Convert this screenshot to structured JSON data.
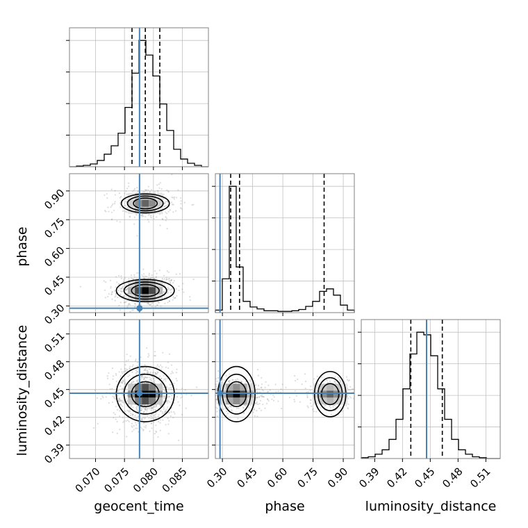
{
  "chart_data": {
    "type": "corner",
    "parameters": [
      "geocent_time",
      "phase",
      "luminosity_distance"
    ],
    "truths": {
      "geocent_time": 0.0776,
      "phase": 0.288,
      "luminosity_distance": 0.446
    },
    "colors": {
      "truth": "#4682b4",
      "line": "#000000",
      "grid": "#c0c0c0",
      "frame": "#808080",
      "scatter": "#9a9a9a"
    },
    "grid": true,
    "panels": [
      {
        "kind": "hist1d",
        "param": "geocent_time",
        "xlim": [
          0.0655,
          0.0895
        ],
        "xticks": [
          "0.070",
          "0.075",
          "0.080",
          "0.085"
        ],
        "quantiles": [
          0.0763,
          0.0786,
          0.0811
        ],
        "bin_edges": [
          0.0655,
          0.0667,
          0.0679,
          0.0691,
          0.0703,
          0.0715,
          0.0727,
          0.0739,
          0.0751,
          0.0763,
          0.0775,
          0.0787,
          0.0799,
          0.0811,
          0.0823,
          0.0835,
          0.0847,
          0.0859,
          0.0871,
          0.0883,
          0.0895
        ],
        "counts": [
          0,
          1,
          2,
          4,
          9,
          18,
          30,
          48,
          85,
          134,
          181,
          160,
          130,
          90,
          52,
          25,
          11,
          5,
          2,
          0
        ]
      },
      {
        "kind": "hist2d",
        "x": "geocent_time",
        "y": "phase",
        "xlim": [
          0.0655,
          0.0895
        ],
        "ylim": [
          0.265,
          0.99
        ],
        "yticks": [
          "0.30",
          "0.45",
          "0.60",
          "0.75",
          "0.90"
        ],
        "modes": [
          {
            "x": 0.0786,
            "y": 0.38,
            "weight": 0.62
          },
          {
            "x": 0.0786,
            "y": 0.835,
            "weight": 0.38
          }
        ]
      },
      {
        "kind": "hist1d",
        "param": "phase",
        "xlim": [
          0.265,
          0.955
        ],
        "xticks": [
          "0.30",
          "0.45",
          "0.60",
          "0.75",
          "0.90"
        ],
        "quantiles": [
          0.341,
          0.385,
          0.805
        ],
        "bin_edges": [
          0.265,
          0.2995,
          0.334,
          0.3685,
          0.403,
          0.4375,
          0.472,
          0.5065,
          0.541,
          0.5755,
          0.61,
          0.6445,
          0.679,
          0.7135,
          0.748,
          0.7825,
          0.817,
          0.8515,
          0.886,
          0.9205,
          0.955
        ],
        "counts": [
          4,
          54,
          202,
          73,
          18,
          9,
          6,
          3,
          3,
          2,
          2,
          3,
          5,
          10,
          18,
          34,
          38,
          28,
          12,
          4
        ]
      },
      {
        "kind": "hist2d",
        "x": "geocent_time",
        "y": "luminosity_distance",
        "xlim": [
          0.0655,
          0.0895
        ],
        "ylim": [
          0.3755,
          0.5255
        ],
        "yticks": [
          "0.39",
          "0.42",
          "0.45",
          "0.48",
          "0.51"
        ],
        "modes": [
          {
            "x": 0.0786,
            "y": 0.445,
            "weight": 1.0
          }
        ]
      },
      {
        "kind": "hist2d",
        "x": "phase",
        "y": "luminosity_distance",
        "xlim": [
          0.265,
          0.955
        ],
        "ylim": [
          0.3755,
          0.5255
        ],
        "modes": [
          {
            "x": 0.37,
            "y": 0.445,
            "weight": 0.62
          },
          {
            "x": 0.835,
            "y": 0.445,
            "weight": 0.38
          }
        ]
      },
      {
        "kind": "hist1d",
        "param": "luminosity_distance",
        "xlim": [
          0.3755,
          0.5255
        ],
        "xticks": [
          "0.39",
          "0.42",
          "0.45",
          "0.48",
          "0.51"
        ],
        "quantiles": [
          0.429,
          0.446,
          0.463
        ],
        "bin_edges": [
          0.3755,
          0.383,
          0.3905,
          0.398,
          0.4055,
          0.413,
          0.4205,
          0.428,
          0.4355,
          0.443,
          0.4505,
          0.458,
          0.4655,
          0.473,
          0.4805,
          0.488,
          0.4955,
          0.503,
          0.5105,
          0.518,
          0.5255
        ],
        "counts": [
          1,
          2,
          5,
          10,
          22,
          45,
          80,
          120,
          145,
          142,
          118,
          80,
          45,
          22,
          10,
          5,
          2,
          1,
          0,
          0
        ]
      }
    ]
  }
}
